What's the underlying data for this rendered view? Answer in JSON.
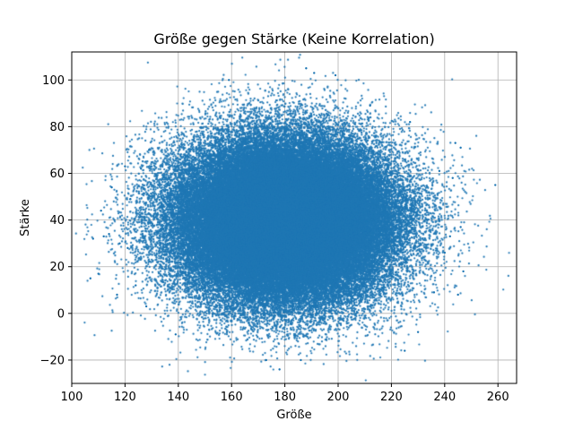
{
  "chart_data": {
    "type": "scatter",
    "title": "Größe gegen Stärke (Keine Korrelation)",
    "xlabel": "Größe",
    "ylabel": "Stärke",
    "xlim": [
      100,
      267
    ],
    "ylim": [
      -30,
      112
    ],
    "xticks": [
      100,
      120,
      140,
      160,
      180,
      200,
      220,
      240,
      260
    ],
    "yticks": [
      -20,
      0,
      20,
      40,
      60,
      80,
      100
    ],
    "grid": true,
    "legend": "none",
    "series": [
      {
        "color": "#1f77b4",
        "cloud": {
          "distribution": "normal",
          "x_mean": 180,
          "x_std": 20,
          "y_mean": 40,
          "y_std": 17,
          "point_count": 100000
        },
        "outliers": [
          {
            "x": 107,
            "y": 15
          },
          {
            "x": 108,
            "y": 32
          },
          {
            "x": 110,
            "y": 17
          },
          {
            "x": 111,
            "y": 44
          },
          {
            "x": 112,
            "y": 33
          },
          {
            "x": 114,
            "y": 34
          },
          {
            "x": 115,
            "y": 54
          },
          {
            "x": 116,
            "y": 40
          },
          {
            "x": 117,
            "y": 8
          },
          {
            "x": 118,
            "y": 30
          },
          {
            "x": 120,
            "y": 63
          },
          {
            "x": 121,
            "y": 28
          },
          {
            "x": 122,
            "y": 49
          },
          {
            "x": 124,
            "y": 12
          },
          {
            "x": 126,
            "y": 62
          },
          {
            "x": 128,
            "y": 3
          },
          {
            "x": 129,
            "y": 70
          },
          {
            "x": 139,
            "y": -9
          },
          {
            "x": 159,
            "y": 100
          },
          {
            "x": 173,
            "y": -20
          },
          {
            "x": 178,
            "y": -24
          },
          {
            "x": 186,
            "y": -20
          },
          {
            "x": 188,
            "y": 105
          },
          {
            "x": 191,
            "y": 103
          },
          {
            "x": 199,
            "y": 102
          },
          {
            "x": 212,
            "y": 89
          },
          {
            "x": 225,
            "y": -16
          },
          {
            "x": 227,
            "y": 82
          },
          {
            "x": 230,
            "y": -8
          },
          {
            "x": 236,
            "y": 9
          },
          {
            "x": 238,
            "y": 61
          },
          {
            "x": 240,
            "y": 26
          },
          {
            "x": 242,
            "y": 33
          },
          {
            "x": 243,
            "y": 58
          },
          {
            "x": 244,
            "y": 73
          },
          {
            "x": 245,
            "y": 8
          },
          {
            "x": 246,
            "y": 71
          },
          {
            "x": 246,
            "y": 37
          },
          {
            "x": 247,
            "y": 18
          },
          {
            "x": 259,
            "y": 55
          }
        ]
      }
    ]
  }
}
